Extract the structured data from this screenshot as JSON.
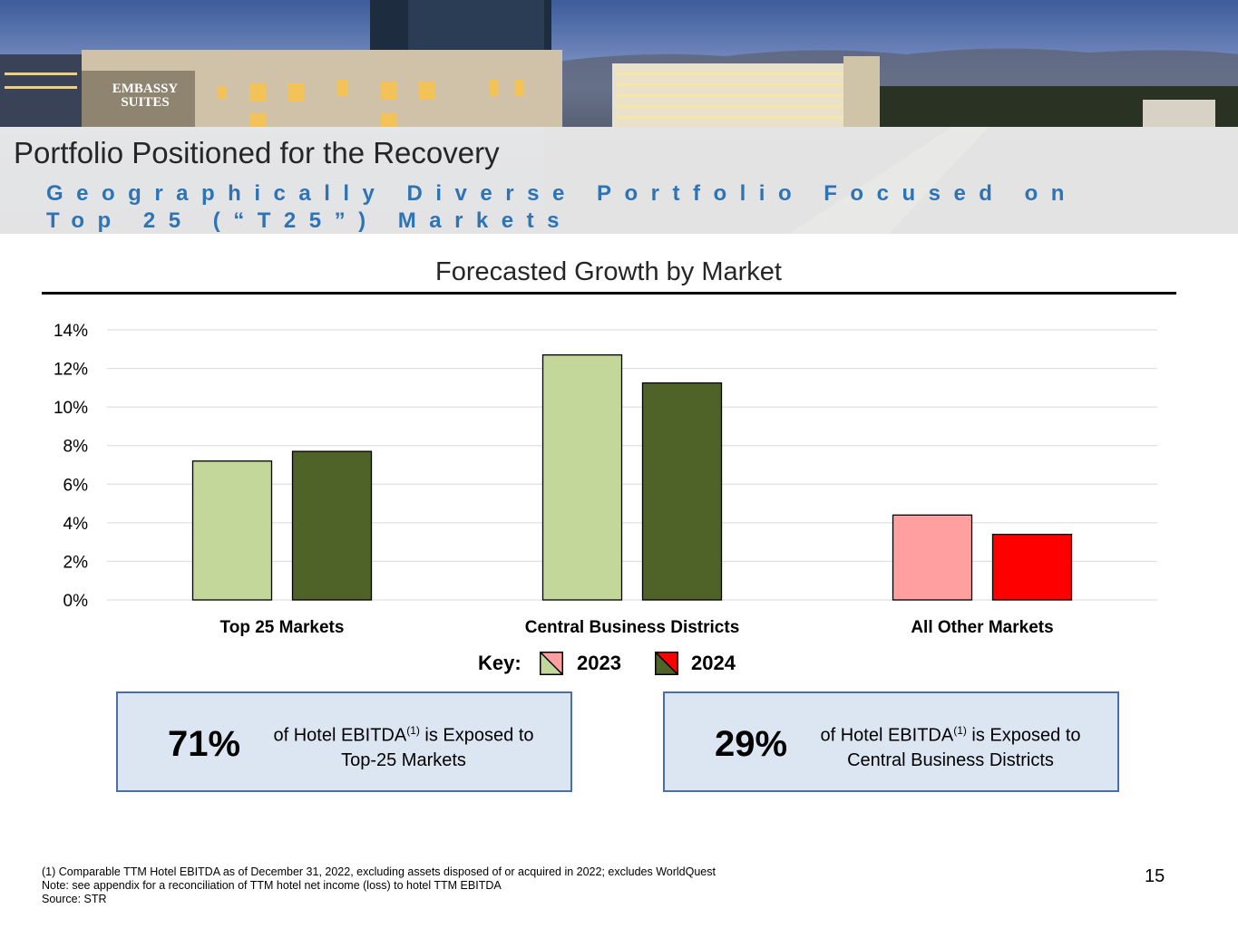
{
  "header": {
    "title": "Portfolio Positioned for the Recovery",
    "subtitle": "Geographically Diverse Portfolio Focused on Top 25 (“T25”) Markets",
    "hotel_sign_line1": "EMBASSY",
    "hotel_sign_line2": "SUITES"
  },
  "chart_data": {
    "type": "bar",
    "title": "Forecasted Growth by Market",
    "categories": [
      "Top 25 Markets",
      "Central Business Districts",
      "All Other Markets"
    ],
    "series": [
      {
        "name": "2023",
        "values": [
          7.2,
          12.7,
          4.4
        ]
      },
      {
        "name": "2024",
        "values": [
          7.7,
          11.25,
          3.4
        ]
      }
    ],
    "ylim": [
      0,
      14
    ],
    "y_ticks": [
      "0%",
      "2%",
      "4%",
      "6%",
      "8%",
      "10%",
      "12%",
      "14%"
    ],
    "grid": true,
    "colors": {
      "2023": [
        "#c4d79b",
        "#c4d79b",
        "#ff9f9f"
      ],
      "2024": [
        "#4f6228",
        "#4f6228",
        "#ff0000"
      ]
    }
  },
  "key": {
    "label": "Key:",
    "item_2023": "2023",
    "item_2024": "2024"
  },
  "callouts": [
    {
      "pct": "71%",
      "line1_pre": "of Hotel EBITDA",
      "sup": "(1)",
      "line1_post": " is Exposed to",
      "line2": "Top-25 Markets"
    },
    {
      "pct": "29%",
      "line1_pre": "of Hotel EBITDA",
      "sup": "(1)",
      "line1_post": " is Exposed to",
      "line2": "Central Business Districts"
    }
  ],
  "footnotes": {
    "note1": "(1)    Comparable TTM Hotel EBITDA as of December 31, 2022, excluding assets disposed of or acquired in 2022; excludes WorldQuest",
    "note2": "Note: see appendix for a reconciliation of TTM hotel net income (loss) to hotel TTM EBITDA",
    "source": "Source: STR"
  },
  "page_number": "15"
}
